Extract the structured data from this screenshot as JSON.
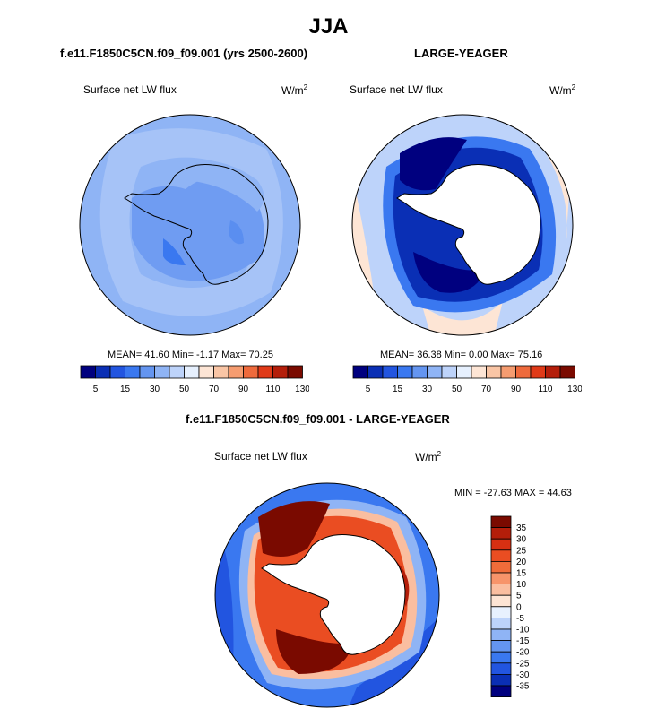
{
  "title": "JJA",
  "panels": {
    "left": {
      "case": "f.e11.F1850C5CN.f09_f09.001 (yrs 2500-2600)",
      "variable": "Surface net LW flux",
      "units_base": "W/m",
      "units_exp": "2",
      "stats": "MEAN=  41.60  Min=  -1.17  Max=  70.25",
      "colorbar_labels": [
        "5",
        "15",
        "30",
        "50",
        "70",
        "90",
        "110",
        "130"
      ]
    },
    "right": {
      "case": "LARGE-YEAGER",
      "variable": "Surface net LW flux",
      "units_base": "W/m",
      "units_exp": "2",
      "stats": "MEAN=  36.38  Min=   0.00  Max=  75.16",
      "colorbar_labels": [
        "5",
        "15",
        "30",
        "50",
        "70",
        "90",
        "110",
        "130"
      ]
    },
    "diff": {
      "case": "f.e11.F1850C5CN.f09_f09.001 - LARGE-YEAGER",
      "variable": "Surface net LW flux",
      "units_base": "W/m",
      "units_exp": "2",
      "stats": "MIN = -27.63 MAX =  44.63",
      "colorbar_labels": [
        "35",
        "30",
        "25",
        "20",
        "15",
        "10",
        "5",
        "0",
        "-5",
        "-10",
        "-15",
        "-20",
        "-25",
        "-30",
        "-35"
      ]
    }
  },
  "colors": {
    "abs_scale": [
      "#00007f",
      "#0a2fb5",
      "#2255e0",
      "#3a78f0",
      "#6495f0",
      "#8fb4f5",
      "#bdd3fa",
      "#e6f0fe",
      "#fde5d5",
      "#f9c5a5",
      "#f59c70",
      "#ee6a3c",
      "#e03a18",
      "#b41e0a",
      "#7a0a00"
    ],
    "diff_scale": [
      "#7a0a00",
      "#b41e0a",
      "#d73012",
      "#ea4d22",
      "#f06c3a",
      "#f7946a",
      "#fabea0",
      "#fde4d4",
      "#e8f1fe",
      "#bdd3fa",
      "#8fb4f5",
      "#6495f0",
      "#3a78f0",
      "#2255e0",
      "#0a2fb5",
      "#00007f"
    ],
    "land": "#ffffff",
    "coast": "#000000"
  }
}
